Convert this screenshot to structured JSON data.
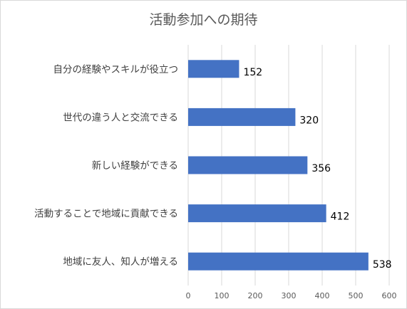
{
  "chart_data": {
    "type": "bar",
    "orientation": "horizontal",
    "title": "活動参加への期待",
    "categories": [
      "自分の経験やスキルが役立つ",
      "世代の違う人と交流できる",
      "新しい経験ができる",
      "活動することで地域に貢献できる",
      "地域に友人、知人が増える"
    ],
    "values": [
      152,
      320,
      356,
      412,
      538
    ],
    "data_labels": [
      "152",
      "320",
      "356",
      "412",
      "538"
    ],
    "xlim": [
      0,
      600
    ],
    "x_ticks": [
      "0",
      "100",
      "200",
      "300",
      "400",
      "500",
      "600"
    ],
    "xlabel": "",
    "ylabel": "",
    "grid": true,
    "legend": "none",
    "bar_color": "#4472C4",
    "grid_color": "#d9d9d9"
  }
}
